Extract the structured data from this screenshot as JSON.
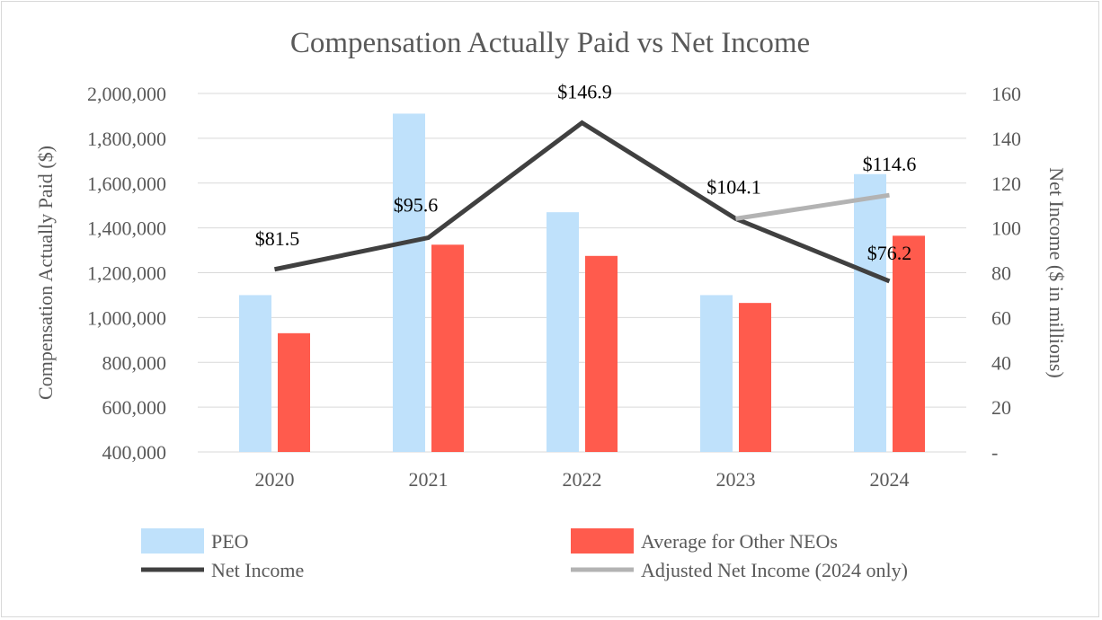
{
  "chart_data": {
    "type": "bar",
    "title": "Compensation Actually Paid vs Net Income",
    "categories": [
      "2020",
      "2021",
      "2022",
      "2023",
      "2024"
    ],
    "ylabel": "Compensation Actually Paid ($)",
    "ylim": [
      400000,
      2000000
    ],
    "y_ticks": [
      400000,
      600000,
      800000,
      1000000,
      1200000,
      1400000,
      1600000,
      1800000,
      2000000
    ],
    "y_tick_labels": [
      "400,000",
      "600,000",
      "800,000",
      "1,000,000",
      "1,200,000",
      "1,400,000",
      "1,600,000",
      "1,800,000",
      "2,000,000"
    ],
    "y2label": "Net Income ($ in millions)",
    "y2lim": [
      0,
      160
    ],
    "y2_ticks": [
      0,
      20,
      40,
      60,
      80,
      100,
      120,
      140,
      160
    ],
    "y2_tick_labels": [
      "-",
      "20",
      "40",
      "60",
      "80",
      "100",
      "120",
      "140",
      "160"
    ],
    "grid": true,
    "legend_position": "bottom",
    "bar_series": [
      {
        "name": "PEO",
        "color": "#bfe1fb",
        "values": [
          1100000,
          1910000,
          1470000,
          1100000,
          1640000
        ]
      },
      {
        "name": "Average for Other NEOs",
        "color": "#ff5b4d",
        "values": [
          930000,
          1325000,
          1275000,
          1065000,
          1365000
        ]
      }
    ],
    "line_series": [
      {
        "name": "Net Income",
        "color": "#404040",
        "axis": "right",
        "x": [
          "2020",
          "2021",
          "2022",
          "2023",
          "2024"
        ],
        "values": [
          81.5,
          95.6,
          146.9,
          104.1,
          76.2
        ],
        "labels": [
          "$81.5",
          "$95.6",
          "$146.9",
          "$104.1",
          "$76.2"
        ]
      },
      {
        "name": "Adjusted Net Income (2024 only)",
        "color": "#b3b3b3",
        "axis": "right",
        "x": [
          "2023",
          "2024"
        ],
        "values": [
          104.1,
          114.6
        ],
        "labels": [
          "",
          "$114.6"
        ]
      }
    ]
  }
}
